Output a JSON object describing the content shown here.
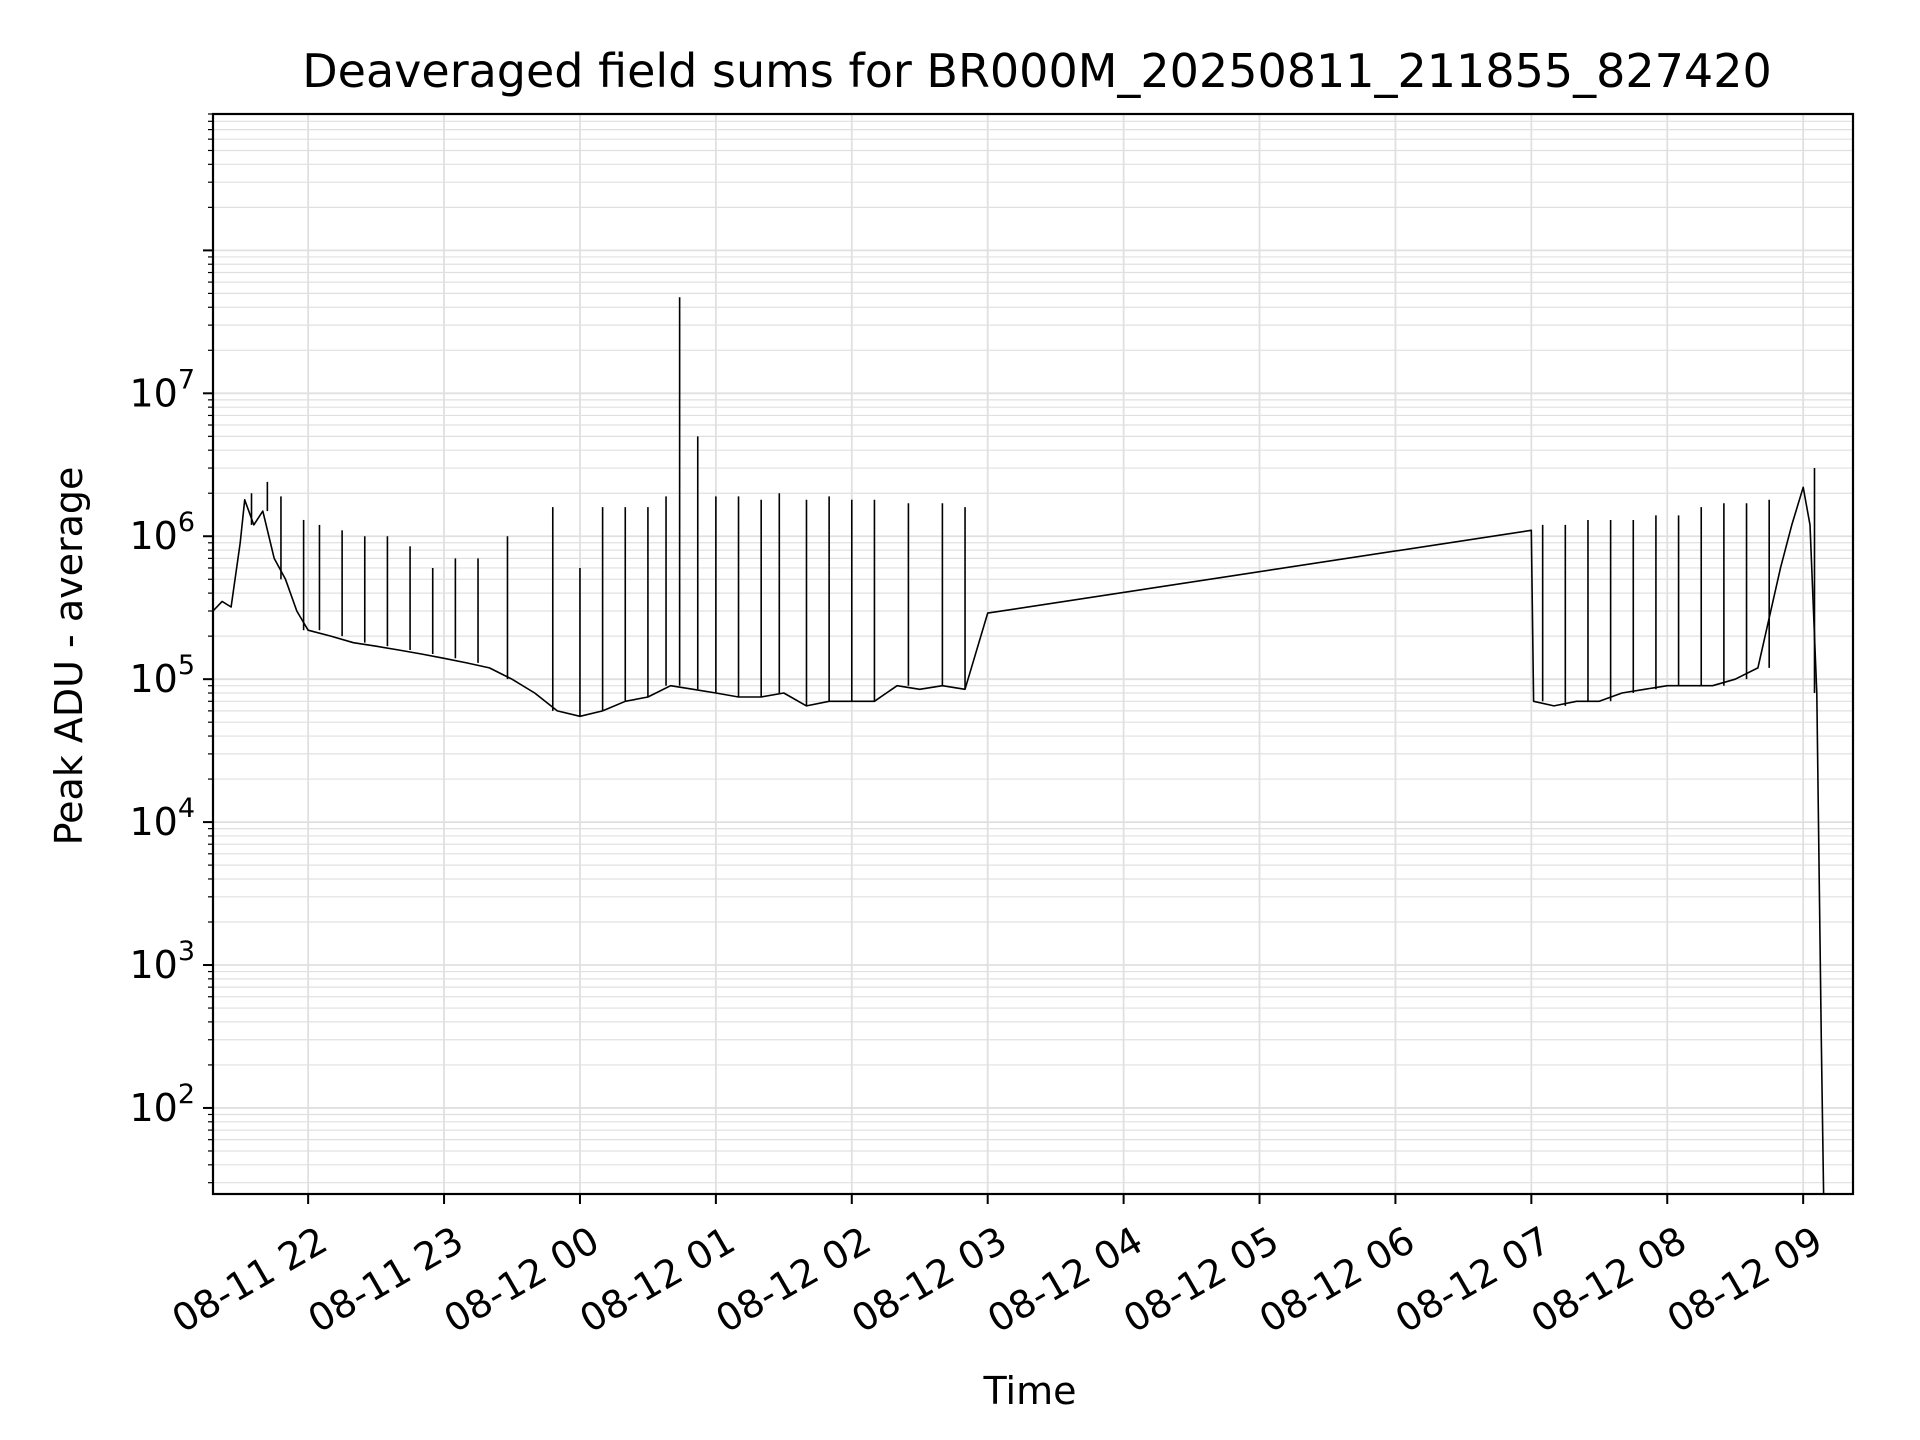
{
  "chart_data": {
    "type": "line",
    "title": "Deaveraged field sums for BR000M_20250811_211855_827420",
    "xlabel": "Time",
    "ylabel": "Peak ADU - average",
    "yscale": "log",
    "ylim": [
      25,
      900000000
    ],
    "xlim": [
      "08-11 21:18",
      "08-12 09:22"
    ],
    "grid": true,
    "line_color": "#000000",
    "grid_color": "#e0e0e0",
    "x_tick_labels": [
      "08-11 22",
      "08-11 23",
      "08-12 00",
      "08-12 01",
      "08-12 02",
      "08-12 03",
      "08-12 04",
      "08-12 05",
      "08-12 06",
      "08-12 07",
      "08-12 08",
      "08-12 09"
    ],
    "y_ticks": [
      {
        "base": "10",
        "exp": "2",
        "value": 100
      },
      {
        "base": "10",
        "exp": "3",
        "value": 1000
      },
      {
        "base": "10",
        "exp": "4",
        "value": 10000
      },
      {
        "base": "10",
        "exp": "5",
        "value": 100000
      },
      {
        "base": "10",
        "exp": "6",
        "value": 1000000
      },
      {
        "base": "10",
        "exp": "7",
        "value": 10000000
      }
    ],
    "series": [
      {
        "points": [
          [
            "08-11 21:18",
            300000
          ],
          [
            "08-11 21:22",
            350000
          ],
          [
            "08-11 21:26",
            320000
          ],
          [
            "08-11 21:30",
            900000
          ],
          [
            "08-11 21:32",
            1800000
          ],
          [
            "08-11 21:36",
            1200000
          ],
          [
            "08-11 21:40",
            1500000
          ],
          [
            "08-11 21:45",
            700000
          ],
          [
            "08-11 21:50",
            500000
          ],
          [
            "08-11 21:55",
            300000
          ],
          [
            "08-11 22:00",
            220000
          ],
          [
            "08-11 22:10",
            200000
          ],
          [
            "08-11 22:20",
            180000
          ],
          [
            "08-11 22:30",
            170000
          ],
          [
            "08-11 22:40",
            160000
          ],
          [
            "08-11 22:50",
            150000
          ],
          [
            "08-11 23:00",
            140000
          ],
          [
            "08-11 23:10",
            130000
          ],
          [
            "08-11 23:20",
            120000
          ],
          [
            "08-11 23:30",
            100000
          ],
          [
            "08-11 23:40",
            80000
          ],
          [
            "08-11 23:50",
            60000
          ],
          [
            "08-12 00:00",
            55000
          ],
          [
            "08-12 00:10",
            60000
          ],
          [
            "08-12 00:20",
            70000
          ],
          [
            "08-12 00:30",
            75000
          ],
          [
            "08-12 00:40",
            90000
          ],
          [
            "08-12 00:50",
            85000
          ],
          [
            "08-12 01:00",
            80000
          ],
          [
            "08-12 01:10",
            75000
          ],
          [
            "08-12 01:20",
            75000
          ],
          [
            "08-12 01:30",
            80000
          ],
          [
            "08-12 01:40",
            65000
          ],
          [
            "08-12 01:50",
            70000
          ],
          [
            "08-12 02:00",
            70000
          ],
          [
            "08-12 02:10",
            70000
          ],
          [
            "08-12 02:20",
            90000
          ],
          [
            "08-12 02:30",
            85000
          ],
          [
            "08-12 02:40",
            90000
          ],
          [
            "08-12 02:50",
            85000
          ],
          [
            "08-12 03:00",
            290000
          ],
          [
            "08-12 07:00",
            1100000
          ],
          [
            "08-12 07:01",
            70000
          ],
          [
            "08-12 07:10",
            65000
          ],
          [
            "08-12 07:20",
            70000
          ],
          [
            "08-12 07:30",
            70000
          ],
          [
            "08-12 07:40",
            80000
          ],
          [
            "08-12 07:50",
            85000
          ],
          [
            "08-12 08:00",
            90000
          ],
          [
            "08-12 08:10",
            90000
          ],
          [
            "08-12 08:20",
            90000
          ],
          [
            "08-12 08:30",
            100000
          ],
          [
            "08-12 08:40",
            120000
          ],
          [
            "08-12 08:50",
            600000
          ],
          [
            "08-12 08:55",
            1200000
          ],
          [
            "08-12 09:00",
            2200000
          ],
          [
            "08-12 09:03",
            1200000
          ],
          [
            "08-12 09:06",
            80000
          ],
          [
            "08-12 09:08",
            300
          ],
          [
            "08-12 09:09",
            25
          ]
        ],
        "spikes": [
          [
            "08-11 21:35",
            2000000
          ],
          [
            "08-11 21:42",
            2400000
          ],
          [
            "08-11 21:48",
            1900000
          ],
          [
            "08-11 21:58",
            1300000
          ],
          [
            "08-11 22:05",
            1200000
          ],
          [
            "08-11 22:15",
            1100000
          ],
          [
            "08-11 22:25",
            1000000
          ],
          [
            "08-11 22:35",
            1000000
          ],
          [
            "08-11 22:45",
            850000
          ],
          [
            "08-11 22:55",
            600000
          ],
          [
            "08-11 23:05",
            700000
          ],
          [
            "08-11 23:15",
            700000
          ],
          [
            "08-11 23:28",
            1000000
          ],
          [
            "08-11 23:48",
            1600000
          ],
          [
            "08-12 00:00",
            600000
          ],
          [
            "08-12 00:10",
            1600000
          ],
          [
            "08-12 00:20",
            1600000
          ],
          [
            "08-12 00:30",
            1600000
          ],
          [
            "08-12 00:38",
            1900000
          ],
          [
            "08-12 00:44",
            47000000
          ],
          [
            "08-12 00:52",
            5000000
          ],
          [
            "08-12 01:00",
            1900000
          ],
          [
            "08-12 01:10",
            1900000
          ],
          [
            "08-12 01:20",
            1800000
          ],
          [
            "08-12 01:28",
            2000000
          ],
          [
            "08-12 01:40",
            1800000
          ],
          [
            "08-12 01:50",
            1900000
          ],
          [
            "08-12 02:00",
            1800000
          ],
          [
            "08-12 02:10",
            1800000
          ],
          [
            "08-12 02:25",
            1700000
          ],
          [
            "08-12 02:40",
            1700000
          ],
          [
            "08-12 02:50",
            1600000
          ],
          [
            "08-12 07:05",
            1200000
          ],
          [
            "08-12 07:15",
            1200000
          ],
          [
            "08-12 07:25",
            1300000
          ],
          [
            "08-12 07:35",
            1300000
          ],
          [
            "08-12 07:45",
            1300000
          ],
          [
            "08-12 07:55",
            1400000
          ],
          [
            "08-12 08:05",
            1400000
          ],
          [
            "08-12 08:15",
            1600000
          ],
          [
            "08-12 08:25",
            1700000
          ],
          [
            "08-12 08:35",
            1700000
          ],
          [
            "08-12 08:45",
            1800000
          ],
          [
            "08-12 09:05",
            3000000
          ]
        ]
      }
    ]
  }
}
